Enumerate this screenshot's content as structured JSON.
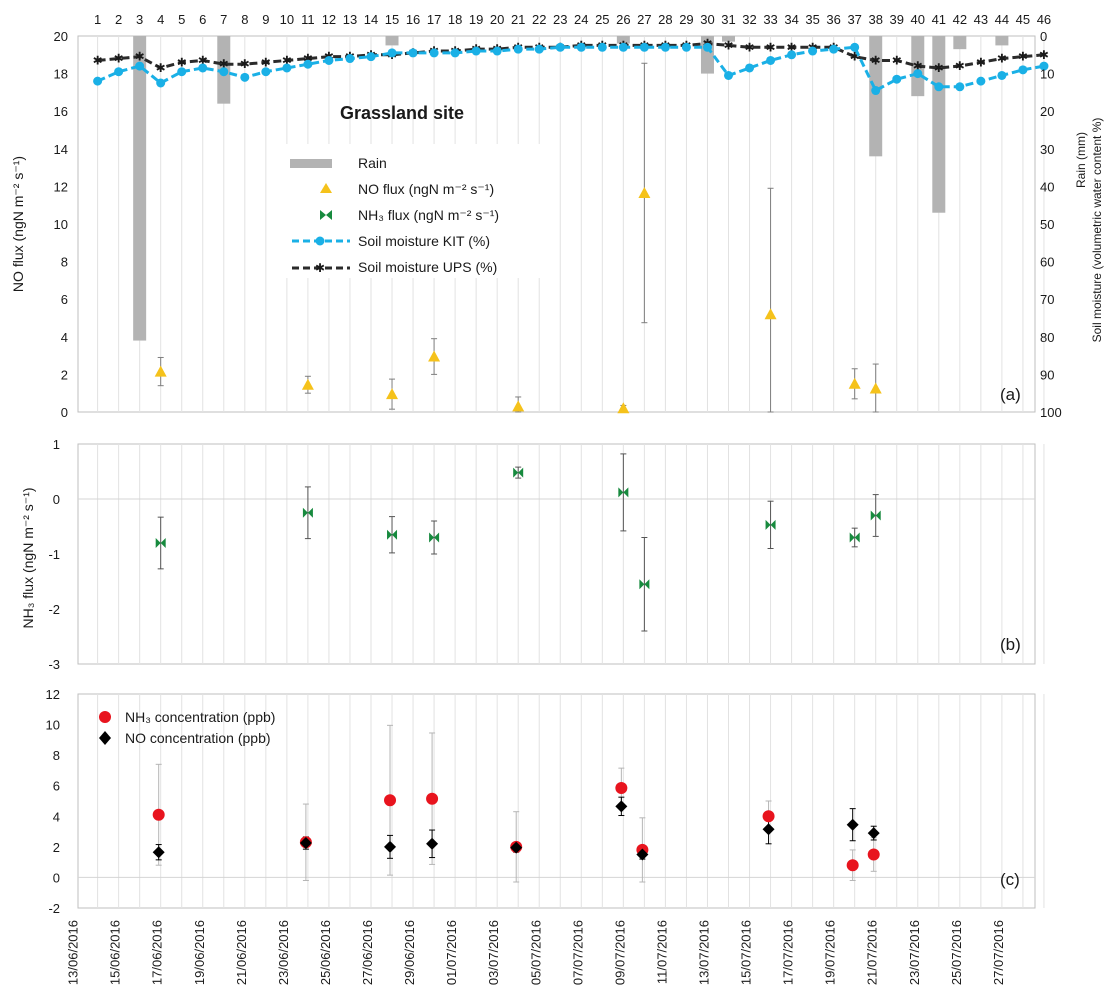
{
  "chart_data": [
    {
      "panel": "a",
      "type": "bar+scatter+line",
      "panel_label": "(a)",
      "title": "Grassland site",
      "top_axis_ticks": [
        "1",
        "2",
        "3",
        "4",
        "5",
        "6",
        "7",
        "8",
        "9",
        "10",
        "11",
        "12",
        "13",
        "14",
        "15",
        "16",
        "17",
        "18",
        "19",
        "20",
        "21",
        "22",
        "23",
        "24",
        "25",
        "26",
        "27",
        "28",
        "29",
        "30",
        "31",
        "32",
        "33",
        "34",
        "35",
        "36",
        "37",
        "38",
        "39",
        "40",
        "41",
        "42",
        "43",
        "44",
        "45",
        "46"
      ],
      "ylabel_left": "NO flux (ngN m⁻² s⁻¹)",
      "ylim_left": [
        0,
        20
      ],
      "yticks_left": [
        0,
        2,
        4,
        6,
        8,
        10,
        12,
        14,
        16,
        18,
        20
      ],
      "ylabel_right_1": "Rain (mm)",
      "ylabel_right_2": "Soil moisture (volumetric water content %)",
      "ylim_right": [
        0,
        100
      ],
      "right_axis_inverted": true,
      "yticks_right": [
        0,
        10,
        20,
        30,
        40,
        50,
        60,
        70,
        80,
        90,
        100
      ],
      "legend": [
        {
          "label": "Rain",
          "symbol": "bar",
          "color": "#b3b3b3"
        },
        {
          "label": "NO flux (ngN m⁻² s⁻¹)",
          "symbol": "triangle",
          "color": "#f5c21b"
        },
        {
          "label": "NH₃ flux (ngN m⁻² s⁻¹)",
          "symbol": "bowtie",
          "color": "#178a3e"
        },
        {
          "label": "Soil moisture KIT (%)",
          "symbol": "dash-circle",
          "color": "#1ab0e6"
        },
        {
          "label": "Soil moisture UPS (%)",
          "symbol": "dash-star",
          "color": "#2b2b2b"
        }
      ],
      "rain_mm": {
        "x": [
          3,
          7,
          15,
          26,
          30,
          31,
          38,
          40,
          41,
          42,
          44
        ],
        "values": [
          81,
          18,
          2.5,
          2,
          10,
          1.5,
          32,
          16,
          47,
          3.5,
          2.5
        ]
      },
      "no_flux": {
        "x": [
          4,
          11,
          15,
          17,
          21,
          26,
          27,
          33,
          37,
          38
        ],
        "values": [
          2.15,
          1.45,
          0.95,
          2.95,
          0.3,
          0.2,
          11.65,
          5.2,
          1.5,
          1.25
        ],
        "err": [
          0.75,
          0.45,
          0.8,
          0.95,
          0.5,
          0.15,
          6.9,
          6.7,
          0.8,
          1.3
        ]
      },
      "soil_moisture_kit": {
        "x": [
          1,
          2,
          3,
          4,
          5,
          6,
          7,
          8,
          9,
          10,
          11,
          12,
          13,
          14,
          15,
          16,
          17,
          18,
          19,
          20,
          21,
          22,
          23,
          24,
          25,
          26,
          27,
          28,
          29,
          30,
          31,
          32,
          33,
          34,
          35,
          36,
          37,
          38,
          39,
          40,
          41,
          42,
          43,
          44,
          45,
          46
        ],
        "values": [
          12,
          9.5,
          8,
          12.5,
          9.5,
          8.5,
          9.5,
          11,
          9.5,
          8.5,
          7.5,
          6.5,
          6,
          5.5,
          4.5,
          4.5,
          4.5,
          4.5,
          4,
          4,
          3.5,
          3.5,
          3,
          3,
          3,
          3,
          3,
          3,
          3,
          3,
          10.5,
          8.5,
          6.5,
          5,
          4,
          3.5,
          3,
          14.5,
          11.5,
          10,
          13.5,
          13.5,
          12,
          10.5,
          9,
          8
        ]
      },
      "soil_moisture_ups": {
        "x": [
          1,
          2,
          3,
          4,
          5,
          6,
          7,
          8,
          9,
          10,
          11,
          12,
          13,
          14,
          15,
          16,
          17,
          18,
          19,
          20,
          21,
          22,
          23,
          24,
          25,
          26,
          27,
          28,
          29,
          30,
          31,
          32,
          33,
          34,
          35,
          36,
          37,
          38,
          39,
          40,
          41,
          42,
          43,
          44,
          45,
          46
        ],
        "values": [
          6.5,
          6,
          5.5,
          8.5,
          7,
          6.5,
          7.5,
          7.5,
          7,
          6.5,
          6,
          5.5,
          5.5,
          5,
          5,
          4.5,
          4,
          4,
          3.5,
          3.5,
          3,
          3,
          3,
          2.5,
          2.5,
          2.5,
          2.5,
          2.5,
          2.5,
          2,
          2.5,
          3,
          3,
          3,
          3,
          3,
          5.5,
          6.5,
          6.5,
          8,
          8.5,
          8,
          7,
          6,
          5.5,
          5
        ]
      }
    },
    {
      "panel": "b",
      "type": "scatter",
      "panel_label": "(b)",
      "ylabel": "NH₃ flux (ngN m⁻² s⁻¹)",
      "ylim": [
        -3,
        1
      ],
      "yticks": [
        -3,
        -2,
        -1,
        0,
        1
      ],
      "series": [
        {
          "name": "NH₃ flux (ngN m⁻² s⁻¹)",
          "color": "#178a3e",
          "x": [
            4,
            11,
            15,
            17,
            21,
            26,
            27,
            33,
            37,
            38
          ],
          "values": [
            -0.8,
            -0.25,
            -0.65,
            -0.7,
            0.48,
            0.12,
            -1.55,
            -0.47,
            -0.7,
            -0.3
          ],
          "err": [
            0.47,
            0.47,
            0.33,
            0.3,
            0.1,
            0.7,
            0.85,
            0.43,
            0.17,
            0.38
          ]
        }
      ]
    },
    {
      "panel": "c",
      "type": "scatter",
      "panel_label": "(c)",
      "ylim": [
        -2,
        12
      ],
      "yticks": [
        -2,
        0,
        2,
        4,
        6,
        8,
        10,
        12
      ],
      "x_tick_labels": [
        "13/06/2016",
        "15/06/2016",
        "17/06/2016",
        "19/06/2016",
        "21/06/2016",
        "23/06/2016",
        "25/06/2016",
        "27/06/2016",
        "29/06/2016",
        "01/07/2016",
        "03/07/2016",
        "05/07/2016",
        "07/07/2016",
        "09/07/2016",
        "11/07/2016",
        "13/07/2016",
        "15/07/2016",
        "17/07/2016",
        "19/07/2016",
        "21/07/2016",
        "23/07/2016",
        "25/07/2016",
        "27/07/2016"
      ],
      "series": [
        {
          "name": "NH₃ concentration (ppb)",
          "color": "#e8141e",
          "marker": "circle",
          "x": [
            4,
            11,
            15,
            17,
            21,
            26,
            27,
            33,
            37,
            38
          ],
          "values": [
            4.1,
            2.3,
            5.05,
            5.15,
            2.0,
            5.85,
            1.8,
            4.0,
            0.8,
            1.5
          ],
          "err": [
            3.3,
            2.5,
            4.9,
            4.3,
            2.3,
            1.3,
            2.1,
            1.0,
            1.0,
            1.1
          ]
        },
        {
          "name": "NO concentration (ppb)",
          "color": "#000000",
          "marker": "diamond",
          "x": [
            4,
            11,
            15,
            17,
            21,
            26,
            27,
            33,
            37,
            38
          ],
          "values": [
            1.65,
            2.25,
            2.0,
            2.2,
            1.95,
            4.65,
            1.5,
            3.15,
            3.45,
            2.9
          ],
          "err": [
            0.5,
            0.4,
            0.75,
            0.9,
            0.3,
            0.6,
            0.3,
            0.95,
            1.05,
            0.45
          ]
        }
      ]
    }
  ]
}
